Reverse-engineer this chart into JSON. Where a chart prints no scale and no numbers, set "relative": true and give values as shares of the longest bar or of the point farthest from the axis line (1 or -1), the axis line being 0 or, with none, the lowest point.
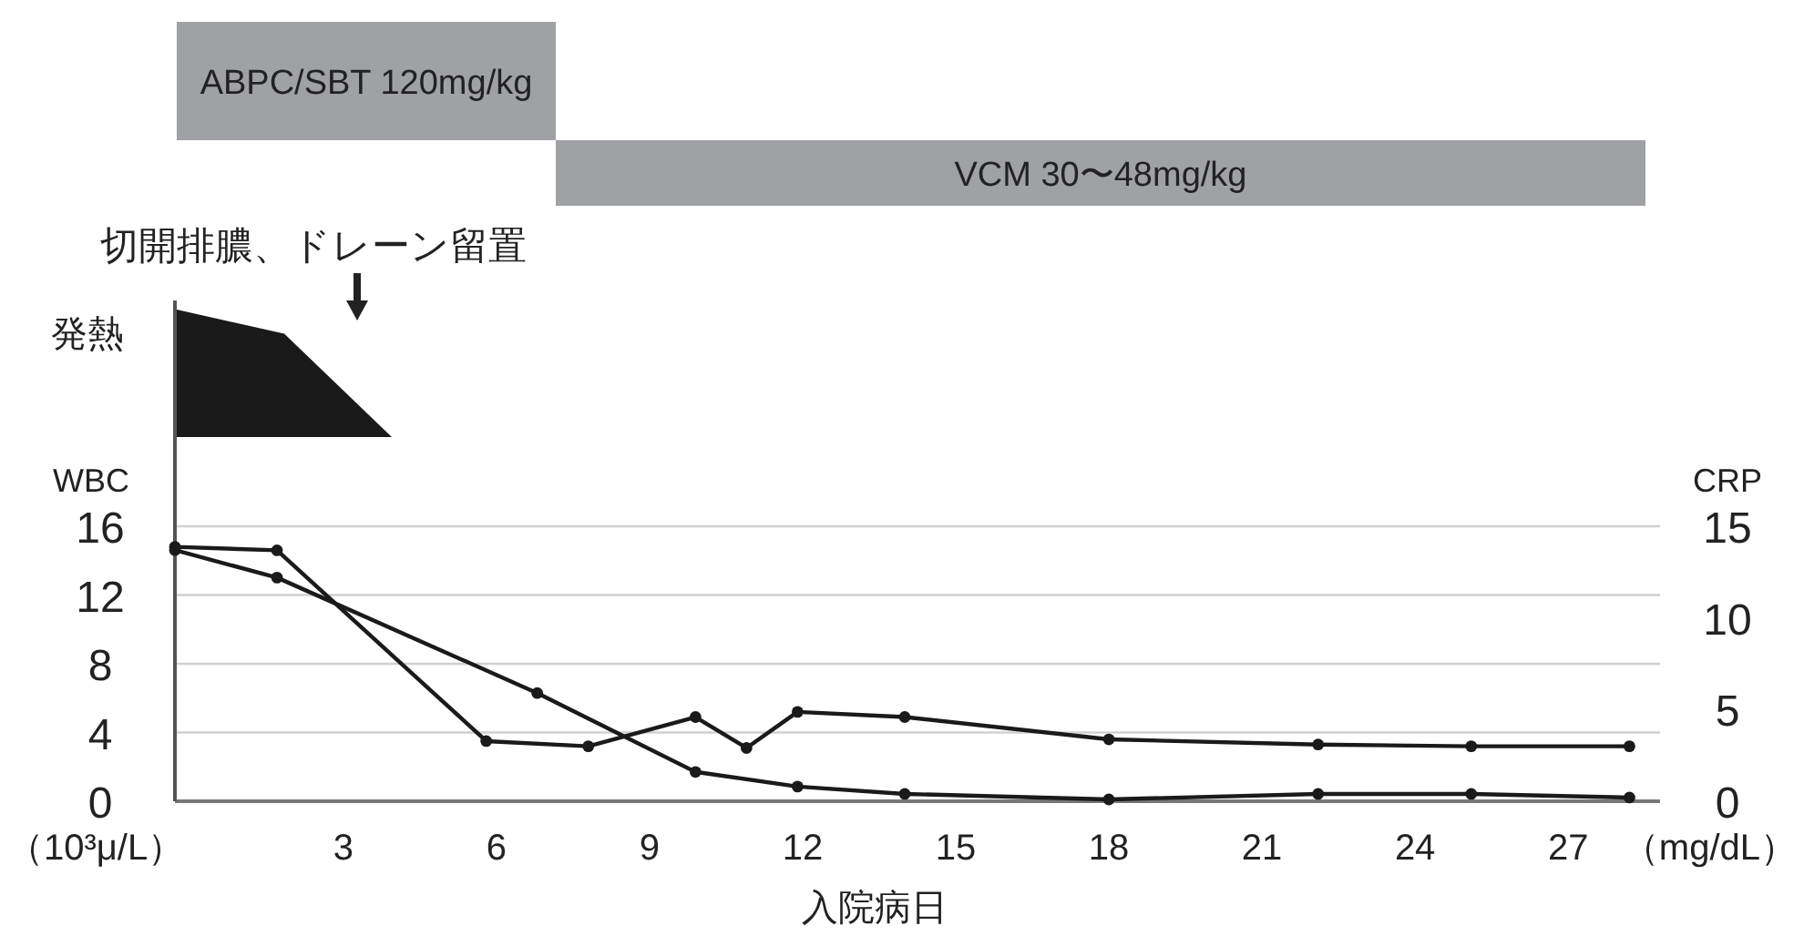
{
  "chart_data": [
    {
      "type": "other",
      "annotations": [
        "ABPC/SBT 120mg/kg",
        "VCM 30〜48mg/kg"
      ]
    },
    {
      "type": "area",
      "relative": true,
      "ylabel": "発熱",
      "categories": [
        null,
        null,
        null
      ],
      "values": [
        1,
        0.81,
        0
      ],
      "color": "#1a1a1a",
      "annotations": [
        "切開排膿、ドレーン留置"
      ]
    },
    {
      "type": "line",
      "xlabel": "入院病日",
      "ylabel": "WBC",
      "y2label": "CRP",
      "xlim": [
        -0.3,
        28.8
      ],
      "xticks": [
        3,
        6,
        9,
        12,
        15,
        18,
        21,
        24,
        27
      ],
      "ylim": [
        0,
        16
      ],
      "yticks": [
        0,
        4,
        8,
        12,
        16
      ],
      "y2lim": [
        0,
        15
      ],
      "y2ticks": [
        0,
        5,
        10,
        15
      ],
      "grid": "y",
      "marker": "circle",
      "color": "#1a1a1a",
      "annotations": [
        "（10³μ/L）",
        "（mg/dL）"
      ],
      "series": [
        {
          "x": [
            -0.3,
            1.7,
            5.8,
            7.8,
            9.9,
            10.9,
            11.9,
            14,
            18,
            22.1,
            25.1,
            28.2
          ],
          "values": [
            14.8,
            14.6,
            3.5,
            3.2,
            4.9,
            3.1,
            5.2,
            4.9,
            3.6,
            3.3,
            3.2,
            3.2
          ]
        },
        {
          "x": [
            -0.3,
            1.7,
            6.8,
            9.9,
            11.9,
            14,
            18,
            22.1,
            25.1,
            28.2
          ],
          "values": [
            13.7,
            12.2,
            5.9,
            1.6,
            0.8,
            0.4,
            0.1,
            0.4,
            0.4,
            0.2
          ],
          "axis": "y2"
        }
      ]
    }
  ]
}
